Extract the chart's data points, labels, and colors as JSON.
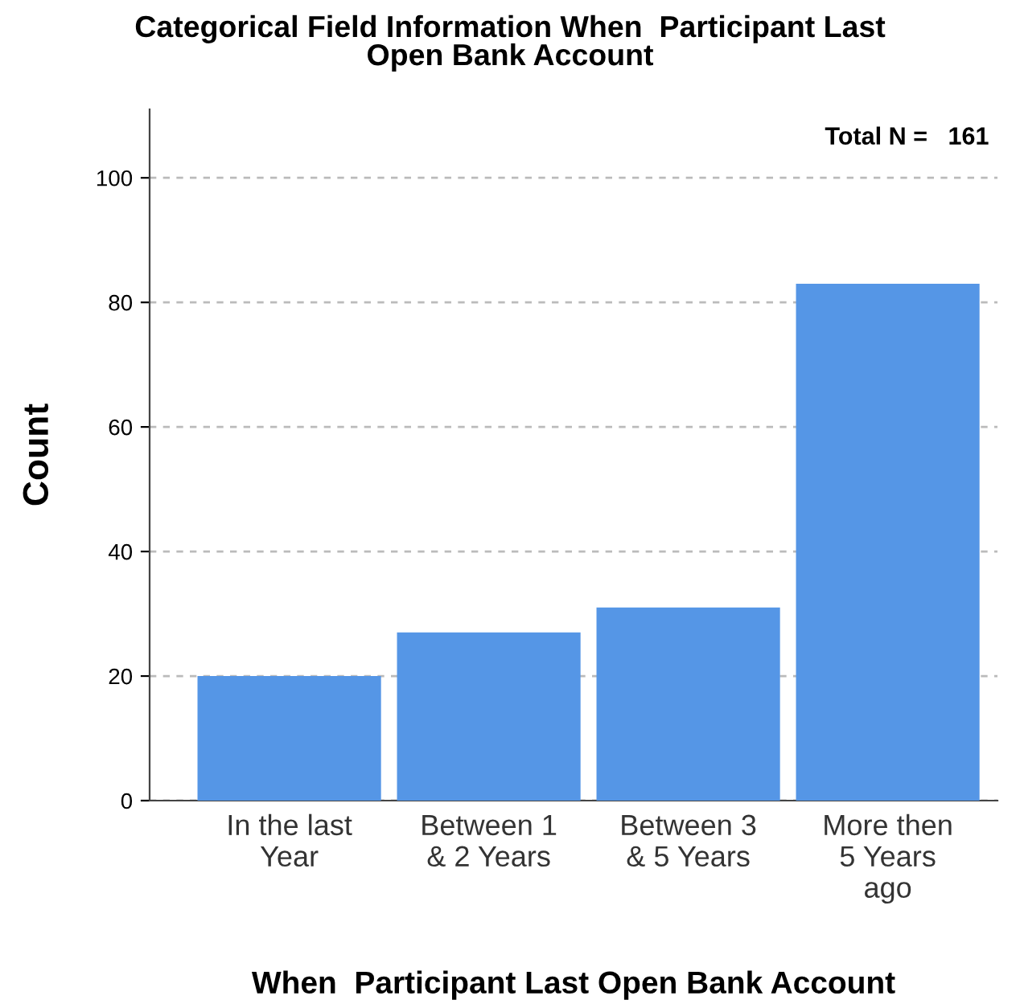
{
  "chart_data": {
    "type": "bar",
    "title": "Categorical Field Information When  Participant Last\nOpen Bank Account",
    "xlabel": "When  Participant Last Open Bank Account",
    "ylabel": "Count",
    "categories": [
      "In the last\nYear",
      "Between 1\n& 2 Years",
      "Between 3\n& 5 Years",
      "More then\n5 Years\nago"
    ],
    "values": [
      20,
      27,
      31,
      83
    ],
    "color": "#5596e6",
    "ylim": [
      0,
      111
    ],
    "yticks": [
      0,
      20,
      40,
      60,
      80,
      100
    ],
    "grid": "y",
    "annotations": [
      "Total N =   161"
    ]
  }
}
